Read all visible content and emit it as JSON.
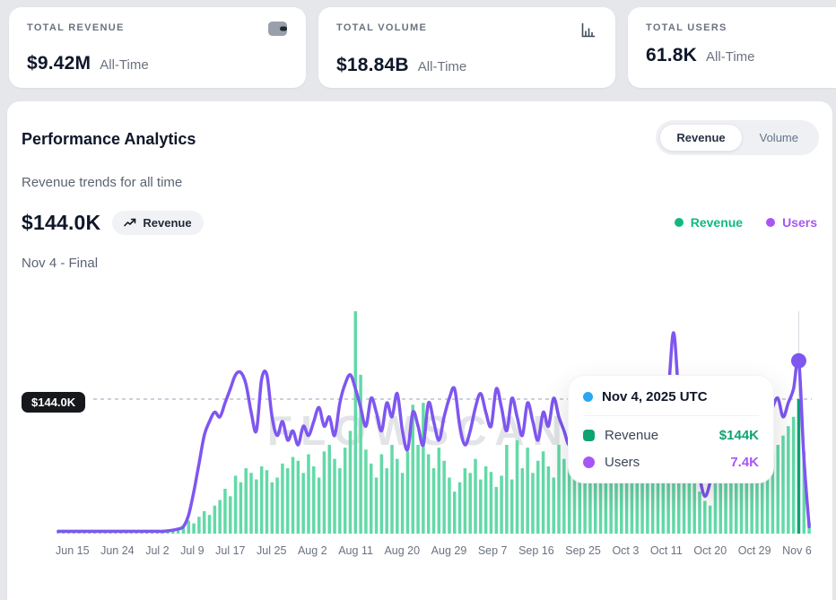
{
  "stats": [
    {
      "label": "TOTAL REVENUE",
      "value": "$9.42M",
      "period": "All-Time",
      "icon": "wallet-icon"
    },
    {
      "label": "TOTAL VOLUME",
      "value": "$18.84B",
      "period": "All-Time",
      "icon": "bar-chart-icon"
    },
    {
      "label": "TOTAL USERS",
      "value": "61.8K",
      "period": "All-Time",
      "icon": null
    }
  ],
  "panel": {
    "title": "Performance Analytics",
    "subtitle": "Revenue trends for all time",
    "headline_value": "$144.0K",
    "headline_badge": "Revenue",
    "headline_caption": "Nov 4 - Final",
    "toggle": {
      "options": [
        "Revenue",
        "Volume"
      ],
      "active": "Revenue"
    },
    "legend": [
      {
        "label": "Revenue",
        "color": "#10b981"
      },
      {
        "label": "Users",
        "color": "#a855f7"
      }
    ],
    "watermark": "FLOWSCAN.XYZ"
  },
  "tooltip": {
    "marker_color": "#29a8f0",
    "title": "Nov 4, 2025 UTC",
    "rows": [
      {
        "label": "Revenue",
        "value": "$144K",
        "color": "#10a372",
        "swatch": "square"
      },
      {
        "label": "Users",
        "value": "7.4K",
        "color": "#a855f7",
        "swatch": "round"
      }
    ]
  },
  "chart_data": {
    "type": "bar+line",
    "title": "Revenue trends for all time",
    "x_ticks": [
      "Jun 15",
      "Jun 24",
      "Jul 2",
      "Jul 9",
      "Jul 17",
      "Jul 25",
      "Aug 2",
      "Aug 11",
      "Aug 20",
      "Aug 29",
      "Sep 7",
      "Sep 16",
      "Sep 25",
      "Oct 3",
      "Oct 11",
      "Oct 20",
      "Oct 29",
      "Nov 6"
    ],
    "x_tick_day_index": [
      0,
      9,
      17,
      24,
      32,
      40,
      48,
      57,
      66,
      75,
      84,
      93,
      102,
      110,
      118,
      127,
      136,
      144
    ],
    "revenue_axis_max": 240,
    "users_axis_max": 9.6,
    "grid": false,
    "legend_position": "top-right",
    "threshold": {
      "series": "Revenue",
      "value": 144,
      "label": "$144.0K"
    },
    "active_index": 142,
    "active_date": "Nov 4, 2025 UTC",
    "active_values": {
      "revenue_k": 144,
      "users_k": 7.4
    },
    "series": [
      {
        "name": "Revenue",
        "type": "bar",
        "unit": "$K",
        "color": "#63d9a7",
        "highlight_color": "#0ea274",
        "values": [
          1.2,
          1,
          1.5,
          1.1,
          1.3,
          2,
          1.2,
          1.6,
          1.1,
          1.4,
          2.1,
          1.3,
          1.2,
          1.7,
          1.1,
          1.3,
          2,
          1.5,
          1.2,
          1.8,
          2.2,
          2.8,
          3.2,
          4,
          8,
          14,
          11,
          18,
          24,
          20,
          30,
          36,
          48,
          40,
          62,
          55,
          70,
          65,
          58,
          72,
          68,
          55,
          60,
          75,
          70,
          82,
          78,
          65,
          85,
          72,
          60,
          88,
          95,
          80,
          70,
          92,
          110,
          238,
          170,
          90,
          75,
          60,
          85,
          70,
          95,
          80,
          65,
          88,
          138,
          95,
          140,
          85,
          70,
          92,
          78,
          60,
          45,
          55,
          70,
          65,
          80,
          58,
          72,
          66,
          50,
          62,
          95,
          58,
          100,
          70,
          92,
          65,
          78,
          88,
          72,
          60,
          95,
          80,
          70,
          118,
          90,
          75,
          110,
          95,
          85,
          120,
          140,
          125,
          100,
          115,
          90,
          105,
          85,
          95,
          75,
          88,
          70,
          82,
          145,
          120,
          95,
          80,
          60,
          45,
          35,
          30,
          55,
          70,
          90,
          110,
          135,
          148,
          120,
          95,
          80,
          60,
          70,
          85,
          95,
          105,
          115,
          125,
          144,
          88,
          12
        ]
      },
      {
        "name": "Users",
        "type": "line",
        "unit": "K",
        "color": "#7e56f0",
        "values": [
          0.1,
          0.1,
          0.1,
          0.1,
          0.1,
          0.1,
          0.1,
          0.1,
          0.1,
          0.1,
          0.1,
          0.1,
          0.1,
          0.1,
          0.1,
          0.1,
          0.1,
          0.1,
          0.1,
          0.1,
          0.1,
          0.12,
          0.15,
          0.2,
          0.3,
          0.8,
          1.8,
          3,
          4.2,
          4.8,
          5.2,
          5,
          5.6,
          6.2,
          6.8,
          6.9,
          6.4,
          5.2,
          4.4,
          6.6,
          6.8,
          5,
          4.2,
          4.8,
          4,
          4.4,
          3.8,
          4.6,
          4.2,
          4.8,
          5.4,
          4.6,
          5,
          4.2,
          5.6,
          6.4,
          6.8,
          6.2,
          5.4,
          4.6,
          5.8,
          5.2,
          4.4,
          5.6,
          5,
          6,
          4.4,
          3.6,
          5.2,
          4.6,
          3.8,
          5.6,
          4.8,
          4,
          5,
          5.8,
          6.2,
          4.6,
          3.8,
          4.4,
          5.4,
          6,
          5.2,
          4.6,
          6.2,
          5.4,
          4.4,
          5.8,
          5,
          4.2,
          5.6,
          4.8,
          4,
          5.2,
          4.6,
          5.8,
          5,
          4.4,
          3.8,
          4.6,
          4.2,
          3.6,
          4.8,
          4.2,
          5.4,
          4.6,
          5,
          5.6,
          5.2,
          5.8,
          5.4,
          6,
          5.2,
          4.6,
          5.6,
          5,
          5.4,
          6.2,
          8.6,
          6,
          5.2,
          4.6,
          3.6,
          2.4,
          1.6,
          2.2,
          3.4,
          4.4,
          5,
          4.2,
          5.4,
          4.8,
          5.6,
          5,
          4.4,
          5.2,
          4.6,
          5.4,
          5.8,
          5,
          5.6,
          6.2,
          7.4,
          3.2,
          0.3
        ]
      }
    ],
    "colors": {
      "threshold_line": "#94a3b8",
      "crosshair": "#d8dbe1",
      "tick_text": "#6b7280"
    }
  }
}
